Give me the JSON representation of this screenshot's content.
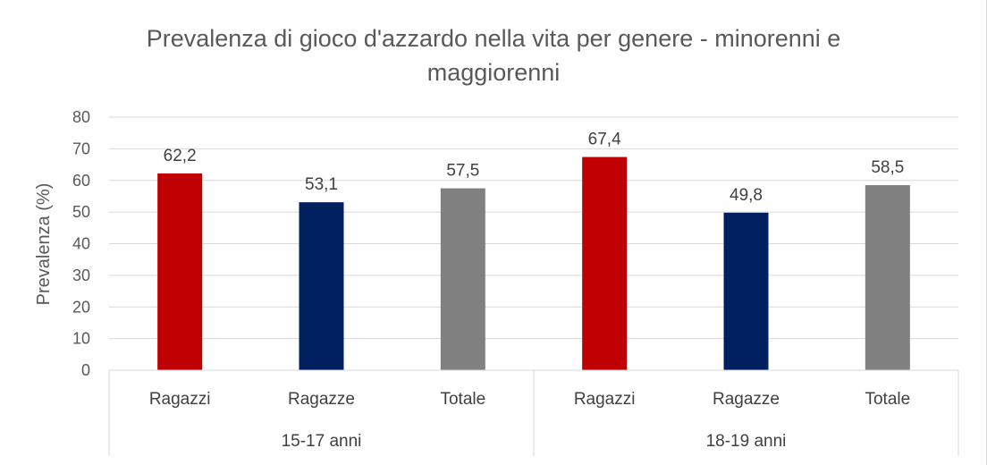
{
  "chart_data": {
    "type": "bar",
    "title_line1": "Prevalenza di gioco d'azzardo nella vita per genere - minorenni e",
    "title_line2": "maggiorenni",
    "ylabel": "Prevalenza (%)",
    "ylim": [
      0,
      80
    ],
    "yticks": [
      0,
      10,
      20,
      30,
      40,
      50,
      60,
      70,
      80
    ],
    "grid": true,
    "categories": [
      "Ragazzi",
      "Ragazze",
      "Totale",
      "Ragazzi",
      "Ragazze",
      "Totale"
    ],
    "groups": [
      {
        "label": "15-17 anni",
        "start": 0,
        "end": 2
      },
      {
        "label": "18-19 anni",
        "start": 3,
        "end": 5
      }
    ],
    "values": [
      62.2,
      53.1,
      57.5,
      67.4,
      49.8,
      58.5
    ],
    "value_labels": [
      "62,2",
      "53,1",
      "57,5",
      "67,4",
      "49,8",
      "58,5"
    ],
    "bar_colors": [
      "#c00000",
      "#002060",
      "#808080",
      "#c00000",
      "#002060",
      "#808080"
    ]
  }
}
